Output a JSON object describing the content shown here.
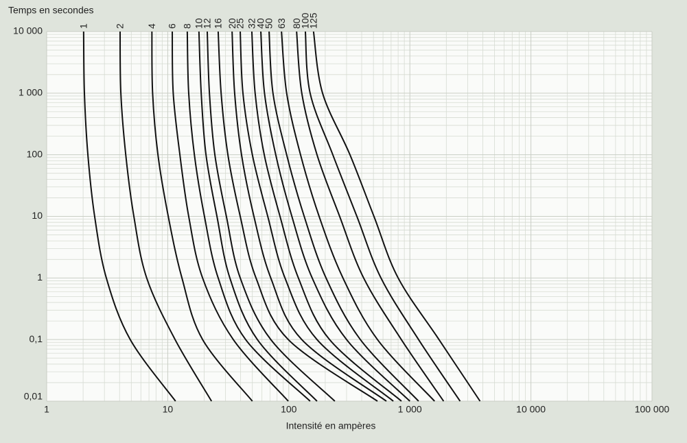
{
  "chart_data": {
    "type": "line",
    "title": "Temps en secondes",
    "x_label": "Intensité en ampères",
    "log_x": true,
    "log_y": true,
    "grid": true,
    "xlim": [
      1,
      100000
    ],
    "xticks": [
      1,
      10,
      100,
      {
        "value": 1000,
        "label": "1 000"
      },
      {
        "value": 10000,
        "label": "10 000"
      },
      {
        "value": 100000,
        "label": "100 000"
      }
    ],
    "ylim": [
      0.01,
      10000
    ],
    "yticks": [
      {
        "value": 0.01,
        "label": "0,01"
      },
      {
        "value": 0.1,
        "label": "0,1"
      },
      1,
      10,
      100,
      {
        "value": 1000,
        "label": "1 000"
      },
      {
        "value": 10000,
        "label": "10 000"
      }
    ],
    "series": [
      {
        "name": "1",
        "color": "#111111",
        "x": [
          2.02,
          2.05,
          2.19,
          2.49,
          3.11,
          4.9,
          11.6
        ],
        "values": [
          10000,
          1000,
          100,
          10,
          1,
          0.1,
          0.01
        ]
      },
      {
        "name": "2",
        "color": "#111111",
        "x": [
          4.04,
          4.1,
          4.5,
          5.25,
          6.7,
          11.5,
          23
        ],
        "values": [
          10000,
          1000,
          100,
          10,
          1,
          0.1,
          0.01
        ]
      },
      {
        "name": "4",
        "color": "#111111",
        "x": [
          7.4,
          7.5,
          8.3,
          10.1,
          13.1,
          19.4,
          50
        ],
        "values": [
          10000,
          1000,
          100,
          10,
          1,
          0.1,
          0.01
        ]
      },
      {
        "name": "6",
        "color": "#111111",
        "x": [
          10.9,
          11.1,
          12.6,
          14.9,
          19.4,
          34.8,
          99
        ],
        "values": [
          10000,
          1000,
          100,
          10,
          1,
          0.1,
          0.01
        ]
      },
      {
        "name": "8",
        "color": "#111111",
        "x": [
          14.5,
          14.9,
          16.6,
          20.1,
          26.1,
          44,
          150
        ],
        "values": [
          10000,
          1000,
          100,
          10,
          1,
          0.1,
          0.01
        ]
      },
      {
        "name": "10",
        "color": "#111111",
        "x": [
          18.1,
          18.9,
          20.7,
          25.5,
          32.6,
          55,
          171
        ],
        "values": [
          10000,
          1000,
          100,
          10,
          1,
          0.1,
          0.01
        ]
      },
      {
        "name": "12",
        "color": "#111111",
        "x": [
          21.2,
          22.1,
          24.5,
          30.5,
          39.7,
          71,
          240
        ],
        "values": [
          10000,
          1000,
          100,
          10,
          1,
          0.1,
          0.01
        ]
      },
      {
        "name": "16",
        "color": "#111111",
        "x": [
          26.1,
          27.6,
          31.4,
          39.7,
          53.6,
          99,
          540
        ],
        "values": [
          10000,
          1000,
          100,
          10,
          1,
          0.1,
          0.01
        ]
      },
      {
        "name": "20",
        "color": "#111111",
        "x": [
          34,
          35.7,
          40.7,
          51.5,
          71,
          128,
          640
        ],
        "values": [
          10000,
          1000,
          100,
          10,
          1,
          0.1,
          0.01
        ]
      },
      {
        "name": "25",
        "color": "#111111",
        "x": [
          39.7,
          41.8,
          50,
          67,
          93,
          171,
          730
        ],
        "values": [
          10000,
          1000,
          100,
          10,
          1,
          0.1,
          0.01
        ]
      },
      {
        "name": "32",
        "color": "#111111",
        "x": [
          49.5,
          52.7,
          62.7,
          84.6,
          120,
          217,
          852
        ],
        "values": [
          10000,
          1000,
          100,
          10,
          1,
          0.1,
          0.01
        ]
      },
      {
        "name": "40",
        "color": "#111111",
        "x": [
          58.7,
          63,
          78,
          106,
          156,
          300,
          1000
        ],
        "values": [
          10000,
          1000,
          100,
          10,
          1,
          0.1,
          0.01
        ]
      },
      {
        "name": "50",
        "color": "#111111",
        "x": [
          68.7,
          74,
          96,
          134,
          203,
          390,
          1180
        ],
        "values": [
          10000,
          1000,
          100,
          10,
          1,
          0.1,
          0.01
        ]
      },
      {
        "name": "63",
        "color": "#111111",
        "x": [
          87,
          96,
          125,
          178,
          280,
          540,
          1600
        ],
        "values": [
          10000,
          1000,
          100,
          10,
          1,
          0.1,
          0.01
        ]
      },
      {
        "name": "80",
        "color": "#111111",
        "x": [
          116,
          128,
          171,
          263,
          415,
          850,
          1900
        ],
        "values": [
          10000,
          1000,
          100,
          10,
          1,
          0.1,
          0.01
        ]
      },
      {
        "name": "100",
        "color": "#111111",
        "x": [
          137,
          150,
          231,
          365,
          577,
          1180,
          2600
        ],
        "values": [
          10000,
          1000,
          100,
          10,
          1,
          0.1,
          0.01
        ]
      },
      {
        "name": "125",
        "color": "#111111",
        "x": [
          160,
          190,
          320,
          505,
          800,
          1740,
          3800
        ],
        "values": [
          10000,
          1000,
          100,
          10,
          1,
          0.1,
          0.01
        ]
      }
    ]
  }
}
